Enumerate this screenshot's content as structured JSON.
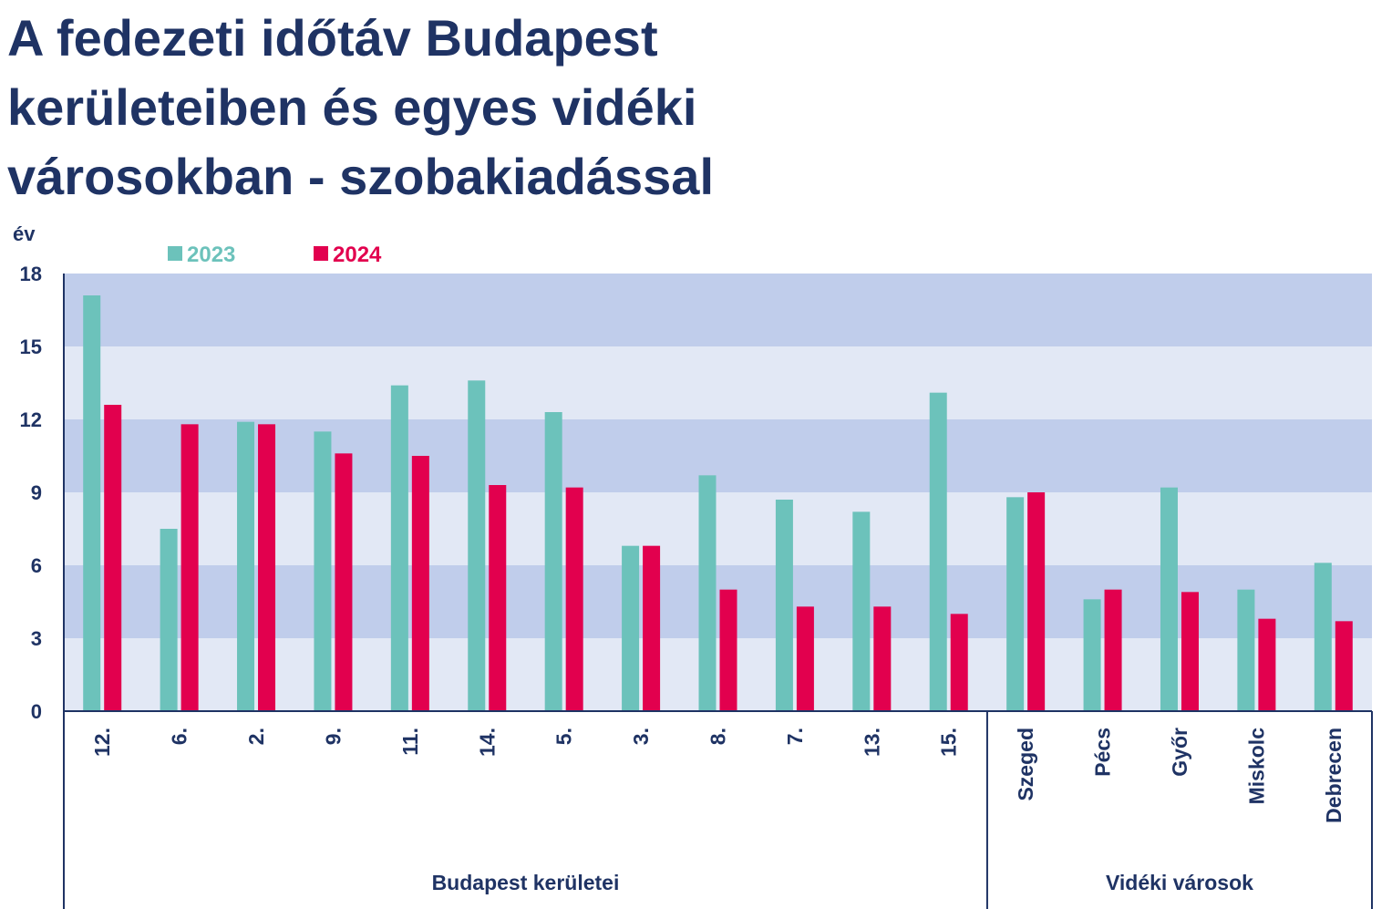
{
  "title_lines": [
    "A fedezeti időtáv Budapest",
    "kerületeiben és egyes vidéki",
    "városokban - szobakiadással"
  ],
  "chart_data": {
    "type": "bar",
    "ylabel": "év",
    "ylim": [
      0,
      18
    ],
    "yticks": [
      0,
      3,
      6,
      9,
      12,
      15,
      18
    ],
    "grid": "alternating horizontal bands",
    "legend_position": "top-left",
    "categories": [
      "12.",
      "6.",
      "2.",
      "9.",
      "11.",
      "14.",
      "5.",
      "3.",
      "8.",
      "7.",
      "13.",
      "15.",
      "Szeged",
      "Pécs",
      "Győr",
      "Miskolc",
      "Debrecen"
    ],
    "groups": [
      {
        "label": "Budapest kerületei",
        "count": 12
      },
      {
        "label": "Vidéki városok",
        "count": 5
      }
    ],
    "series": [
      {
        "name": "2023",
        "color": "#6cc2bb",
        "values": [
          17.1,
          7.5,
          11.9,
          11.5,
          13.4,
          13.6,
          12.3,
          6.8,
          9.7,
          8.7,
          8.2,
          13.1,
          8.8,
          4.6,
          9.2,
          5.0,
          6.1
        ]
      },
      {
        "name": "2024",
        "color": "#e2004e",
        "values": [
          12.6,
          11.8,
          11.8,
          10.6,
          10.5,
          9.3,
          9.2,
          6.8,
          5.0,
          4.3,
          4.3,
          4.0,
          9.0,
          5.0,
          4.9,
          3.8,
          3.7
        ]
      }
    ],
    "band_colors": [
      "#e2e8f5",
      "#c0cdeb"
    ],
    "text_color": "#1f3364"
  }
}
